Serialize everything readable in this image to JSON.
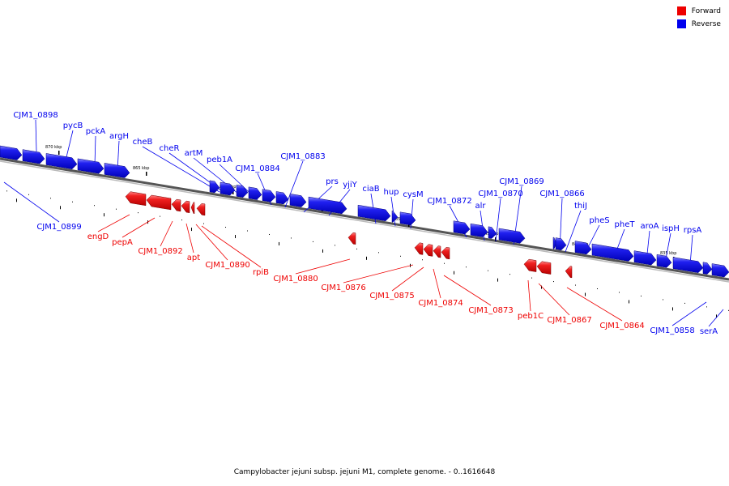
{
  "caption": "Campylobacter jejuni subsp. jejuni M1, complete genome. - 0..1616648",
  "legend": [
    {
      "label": "Forward",
      "color": "#ee0000"
    },
    {
      "label": "Reverse",
      "color": "#0000ee"
    }
  ],
  "colors": {
    "forward": "#ee0000",
    "reverse": "#0000ee",
    "backbone": "#555555"
  },
  "scale_ticks": [
    {
      "text": "870 kbp",
      "pos": 870
    },
    {
      "text": "865 kbp",
      "pos": 865
    },
    {
      "text": "860 kbp",
      "pos": 860
    },
    {
      "text": "855 kbp",
      "pos": 855
    },
    {
      "text": "850 kbp",
      "pos": 850
    },
    {
      "text": "845 kbp",
      "pos": 845
    },
    {
      "text": "840 kbp",
      "pos": 840
    },
    {
      "text": "835 kbp",
      "pos": 835
    }
  ],
  "genes": [
    {
      "label": "CJM1_0898",
      "strand": "reverse"
    },
    {
      "label": "pycB",
      "strand": "reverse"
    },
    {
      "label": "pckA",
      "strand": "reverse"
    },
    {
      "label": "argH",
      "strand": "reverse"
    },
    {
      "label": "cheB",
      "strand": "reverse"
    },
    {
      "label": "cheR",
      "strand": "reverse"
    },
    {
      "label": "artM",
      "strand": "reverse"
    },
    {
      "label": "peb1A",
      "strand": "reverse"
    },
    {
      "label": "CJM1_0884",
      "strand": "reverse"
    },
    {
      "label": "CJM1_0883",
      "strand": "reverse"
    },
    {
      "label": "prs",
      "strand": "reverse"
    },
    {
      "label": "yjiY",
      "strand": "reverse"
    },
    {
      "label": "ciaB",
      "strand": "reverse"
    },
    {
      "label": "hup",
      "strand": "reverse"
    },
    {
      "label": "cysM",
      "strand": "reverse"
    },
    {
      "label": "CJM1_0872",
      "strand": "reverse"
    },
    {
      "label": "alr",
      "strand": "reverse"
    },
    {
      "label": "CJM1_0870",
      "strand": "reverse"
    },
    {
      "label": "CJM1_0869",
      "strand": "reverse"
    },
    {
      "label": "CJM1_0866",
      "strand": "reverse"
    },
    {
      "label": "thiJ",
      "strand": "reverse"
    },
    {
      "label": "pheS",
      "strand": "reverse"
    },
    {
      "label": "pheT",
      "strand": "reverse"
    },
    {
      "label": "aroA",
      "strand": "reverse"
    },
    {
      "label": "ispH",
      "strand": "reverse"
    },
    {
      "label": "rpsA",
      "strand": "reverse"
    },
    {
      "label": "CJM1_0899",
      "strand": "reverse"
    },
    {
      "label": "CJM1_0858",
      "strand": "reverse"
    },
    {
      "label": "serA",
      "strand": "reverse"
    },
    {
      "label": "engD",
      "strand": "forward"
    },
    {
      "label": "pepA",
      "strand": "forward"
    },
    {
      "label": "CJM1_0892",
      "strand": "forward"
    },
    {
      "label": "apt",
      "strand": "forward"
    },
    {
      "label": "CJM1_0890",
      "strand": "forward"
    },
    {
      "label": "rpiB",
      "strand": "forward"
    },
    {
      "label": "CJM1_0880",
      "strand": "forward"
    },
    {
      "label": "CJM1_0876",
      "strand": "forward"
    },
    {
      "label": "CJM1_0875",
      "strand": "forward"
    },
    {
      "label": "CJM1_0874",
      "strand": "forward"
    },
    {
      "label": "CJM1_0873",
      "strand": "forward"
    },
    {
      "label": "peb1C",
      "strand": "forward"
    },
    {
      "label": "CJM1_0867",
      "strand": "forward"
    },
    {
      "label": "CJM1_0864",
      "strand": "forward"
    }
  ]
}
